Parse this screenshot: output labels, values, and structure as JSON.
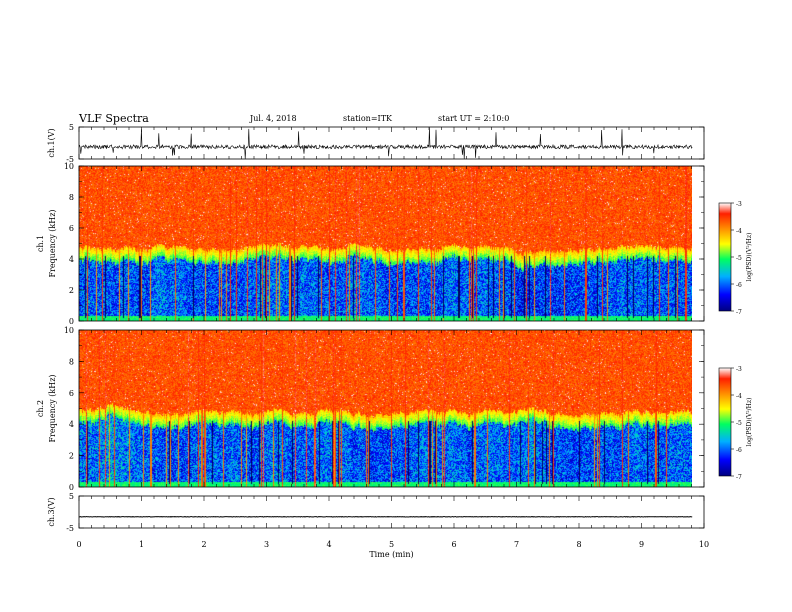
{
  "header": {
    "title": "VLF Spectra",
    "date": "Jul. 4, 2018",
    "station": "station=ITK",
    "start_ut": "start UT = 2:10:0"
  },
  "chart_data": [
    {
      "type": "line",
      "panel": "ch1_waveform",
      "ylabel": "ch.1(V)",
      "ylim": [
        -5,
        5
      ],
      "yticks": [
        "5",
        "-5"
      ],
      "xlim": [
        0,
        10
      ],
      "description_values": {
        "baseline": -1.2,
        "typical_noise": 0.6,
        "max_spike": 5,
        "min_spike": -5
      },
      "color": "#000000"
    },
    {
      "type": "heatmap",
      "panel": "ch1_spectrogram",
      "ylabel_top": "ch.1",
      "ylabel": "Frequency (kHz)",
      "ylim": [
        0,
        10
      ],
      "yticks": [
        "0",
        "2",
        "4",
        "6",
        "8",
        "10"
      ],
      "xlim": [
        0,
        10
      ],
      "data_end_min": 9.8,
      "colorbar": {
        "label": "log(PSD)(V²/Hz)",
        "range": [
          -7,
          -3
        ],
        "ticks": [
          "-3",
          "-4",
          "-5",
          "-6",
          "-7"
        ]
      },
      "bands_khz": {
        "low_blue_top": 4.0,
        "green_yellow_top": 4.8,
        "red_above": 5.5
      }
    },
    {
      "type": "heatmap",
      "panel": "ch2_spectrogram",
      "ylabel_top": "ch.2",
      "ylabel": "Frequency (kHz)",
      "ylim": [
        0,
        10
      ],
      "yticks": [
        "0",
        "2",
        "4",
        "6",
        "8",
        "10"
      ],
      "xlim": [
        0,
        10
      ],
      "data_end_min": 9.8,
      "colorbar": {
        "label": "log(PSD)(V²/Hz)",
        "range": [
          -7,
          -3
        ],
        "ticks": [
          "-3",
          "-4",
          "-5",
          "-6",
          "-7"
        ]
      },
      "bands_khz": {
        "low_blue_top": 4.0,
        "green_yellow_top": 4.8,
        "red_above": 5.5
      }
    },
    {
      "type": "line",
      "panel": "ch3_waveform",
      "ylabel": "ch.3(V)",
      "ylim": [
        -5,
        5
      ],
      "yticks": [
        "5",
        "-5"
      ],
      "xlim": [
        0,
        10
      ],
      "description_values": {
        "baseline": -1.5
      },
      "color": "#000000"
    }
  ],
  "x_axis": {
    "label": "Time (min)",
    "ticks": [
      "0",
      "1",
      "2",
      "3",
      "4",
      "5",
      "6",
      "7",
      "8",
      "9",
      "10"
    ],
    "range": [
      0,
      10
    ]
  }
}
